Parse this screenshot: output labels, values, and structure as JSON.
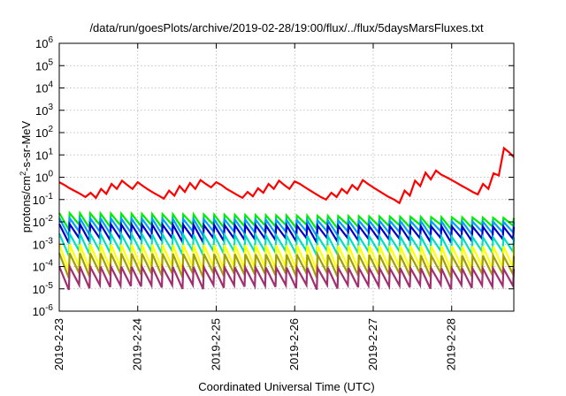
{
  "chart_data": {
    "type": "line",
    "title": "/data/run/goesPlots/archive/2019-02-28/19:00/flux/../flux/5daysMarsFluxes.txt",
    "xlabel": "Coordinated Universal Time (UTC)",
    "ylabel": "protons/cm²-s-sr-MeV",
    "ylabel_parts": {
      "prefix": "protons/cm",
      "sup": "2",
      "suffix": "-s-sr-MeV"
    },
    "yscale": "log",
    "ylim": [
      1e-06,
      1000000.0
    ],
    "xlim": [
      "2019-02-23T00:00",
      "2019-02-28T19:00"
    ],
    "grid": true,
    "x_ticks": [
      {
        "date": "2019-02-23T00:00",
        "label": "2019-2-23"
      },
      {
        "date": "2019-02-24T00:00",
        "label": "2019-2-24"
      },
      {
        "date": "2019-02-25T00:00",
        "label": "2019-2-25"
      },
      {
        "date": "2019-02-26T00:00",
        "label": "2019-2-26"
      },
      {
        "date": "2019-02-27T00:00",
        "label": "2019-2-27"
      },
      {
        "date": "2019-02-28T00:00",
        "label": "2019-2-28"
      }
    ],
    "y_ticks": [
      {
        "value": 1e-06,
        "base": "10",
        "exp": "-6"
      },
      {
        "value": 1e-05,
        "base": "10",
        "exp": "-5"
      },
      {
        "value": 0.0001,
        "base": "10",
        "exp": "-4"
      },
      {
        "value": 0.001,
        "base": "10",
        "exp": "-3"
      },
      {
        "value": 0.01,
        "base": "10",
        "exp": "-2"
      },
      {
        "value": 0.1,
        "base": "10",
        "exp": "-1"
      },
      {
        "value": 1,
        "base": "10",
        "exp": "0"
      },
      {
        "value": 10,
        "base": "10",
        "exp": "1"
      },
      {
        "value": 100,
        "base": "10",
        "exp": "2"
      },
      {
        "value": 1000,
        "base": "10",
        "exp": "3"
      },
      {
        "value": 10000,
        "base": "10",
        "exp": "4"
      },
      {
        "value": 100000,
        "base": "10",
        "exp": "5"
      },
      {
        "value": 1000000,
        "base": "10",
        "exp": "6"
      }
    ],
    "series": [
      {
        "color": "#ff0000",
        "x": [
          "2019-02-23T00:00",
          "2019-02-23T01:36",
          "2019-02-23T03:12",
          "2019-02-23T04:48",
          "2019-02-23T06:24",
          "2019-02-23T08:00",
          "2019-02-23T09:36",
          "2019-02-23T11:12",
          "2019-02-23T12:48",
          "2019-02-23T14:24",
          "2019-02-23T16:00",
          "2019-02-23T17:36",
          "2019-02-23T19:12",
          "2019-02-23T20:48",
          "2019-02-23T22:24",
          "2019-02-24T00:00",
          "2019-02-24T01:36",
          "2019-02-24T03:12",
          "2019-02-24T04:48",
          "2019-02-24T06:24",
          "2019-02-24T08:00",
          "2019-02-24T09:36",
          "2019-02-24T11:12",
          "2019-02-24T12:48",
          "2019-02-24T14:24",
          "2019-02-24T16:00",
          "2019-02-24T17:36",
          "2019-02-24T19:12",
          "2019-02-24T20:48",
          "2019-02-24T22:24",
          "2019-02-25T00:00",
          "2019-02-25T01:36",
          "2019-02-25T03:12",
          "2019-02-25T04:48",
          "2019-02-25T06:24",
          "2019-02-25T08:00",
          "2019-02-25T09:36",
          "2019-02-25T11:12",
          "2019-02-25T12:48",
          "2019-02-25T14:24",
          "2019-02-25T16:00",
          "2019-02-25T17:36",
          "2019-02-25T19:12",
          "2019-02-25T20:48",
          "2019-02-25T22:24",
          "2019-02-26T00:00",
          "2019-02-26T01:36",
          "2019-02-26T03:12",
          "2019-02-26T04:48",
          "2019-02-26T06:24",
          "2019-02-26T08:00",
          "2019-02-26T09:36",
          "2019-02-26T11:12",
          "2019-02-26T12:48",
          "2019-02-26T14:24",
          "2019-02-26T16:00",
          "2019-02-26T17:36",
          "2019-02-26T19:12",
          "2019-02-26T20:48",
          "2019-02-26T22:24",
          "2019-02-27T00:00",
          "2019-02-27T01:36",
          "2019-02-27T03:12",
          "2019-02-27T04:48",
          "2019-02-27T06:24",
          "2019-02-27T08:00",
          "2019-02-27T09:36",
          "2019-02-27T11:12",
          "2019-02-27T12:48",
          "2019-02-27T14:24",
          "2019-02-27T16:00",
          "2019-02-27T17:36",
          "2019-02-27T19:12",
          "2019-02-27T20:48",
          "2019-02-27T22:24",
          "2019-02-28T00:00",
          "2019-02-28T01:36",
          "2019-02-28T03:12",
          "2019-02-28T04:48",
          "2019-02-28T06:24",
          "2019-02-28T08:00",
          "2019-02-28T09:36",
          "2019-02-28T11:12",
          "2019-02-28T12:48",
          "2019-02-28T14:24",
          "2019-02-28T16:00",
          "2019-02-28T17:36",
          "2019-02-28T19:00"
        ],
        "y": [
          0.6,
          0.45,
          0.32,
          0.24,
          0.18,
          0.13,
          0.2,
          0.12,
          0.3,
          0.18,
          0.5,
          0.3,
          0.7,
          0.45,
          0.3,
          0.6,
          0.4,
          0.28,
          0.2,
          0.15,
          0.11,
          0.25,
          0.15,
          0.4,
          0.22,
          0.55,
          0.3,
          0.75,
          0.5,
          0.35,
          0.6,
          0.45,
          0.3,
          0.22,
          0.16,
          0.12,
          0.22,
          0.14,
          0.32,
          0.2,
          0.5,
          0.3,
          0.7,
          0.45,
          0.3,
          0.65,
          0.5,
          0.35,
          0.25,
          0.18,
          0.13,
          0.1,
          0.2,
          0.13,
          0.3,
          0.19,
          0.45,
          0.28,
          0.75,
          0.5,
          0.35,
          0.25,
          0.18,
          0.13,
          0.1,
          0.07,
          0.25,
          0.15,
          0.7,
          0.4,
          1.6,
          0.8,
          2.0,
          1.3,
          1.0,
          0.75,
          0.55,
          0.4,
          0.3,
          0.22,
          0.17,
          0.5,
          0.3,
          1.5,
          1.2,
          20,
          13,
          8
        ]
      },
      {
        "color": "#00ee00",
        "x": [
          "2019-02-23T00:00",
          "2019-02-28T19:00"
        ],
        "y": [
          0.025,
          0.015
        ],
        "cycles": 44,
        "low": 0.006
      },
      {
        "color": "#00a0ff",
        "x": [
          "2019-02-23T00:00",
          "2019-02-28T19:00"
        ],
        "y": [
          0.015,
          0.01
        ],
        "cycles": 44,
        "low": 0.003
      },
      {
        "color": "#0000cc",
        "x": [
          "2019-02-23T00:00",
          "2019-02-28T19:00"
        ],
        "y": [
          0.008,
          0.006
        ],
        "cycles": 44,
        "low": 0.0015
      },
      {
        "color": "#00e0c0",
        "x": [
          "2019-02-23T00:00",
          "2019-02-28T19:00"
        ],
        "y": [
          0.003,
          0.002
        ],
        "cycles": 44,
        "low": 0.0004
      },
      {
        "color": "#ffff00",
        "x": [
          "2019-02-23T00:00",
          "2019-02-28T19:00"
        ],
        "y": [
          0.001,
          0.0008
        ],
        "cycles": 44,
        "low": 8e-05
      },
      {
        "color": "#a0a000",
        "x": [
          "2019-02-23T00:00",
          "2019-02-28T19:00"
        ],
        "y": [
          0.0004,
          0.0003
        ],
        "cycles": 44,
        "low": 4e-05
      },
      {
        "color": "#a03070",
        "x": [
          "2019-02-23T00:00",
          "2019-02-28T19:00"
        ],
        "y": [
          0.0001,
          8e-05
        ],
        "cycles": 44,
        "low": 1.2e-05
      }
    ]
  }
}
